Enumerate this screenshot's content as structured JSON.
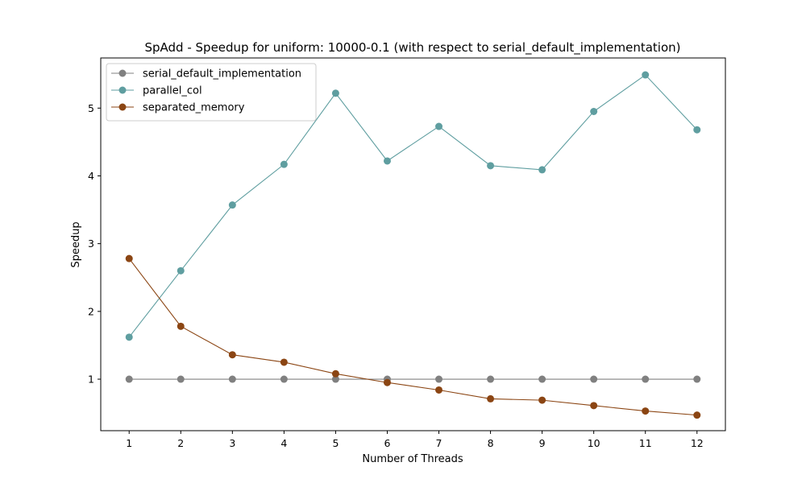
{
  "chart_data": {
    "type": "line",
    "title": "SpAdd - Speedup for uniform: 10000-0.1 (with respect to serial_default_implementation)",
    "xlabel": "Number of Threads",
    "ylabel": "Speedup",
    "x": [
      1,
      2,
      3,
      4,
      5,
      6,
      7,
      8,
      9,
      10,
      11,
      12
    ],
    "xticks": [
      "1",
      "2",
      "3",
      "4",
      "5",
      "6",
      "7",
      "8",
      "9",
      "10",
      "11",
      "12"
    ],
    "yticks": [
      "1",
      "2",
      "3",
      "4",
      "5"
    ],
    "xlim": [
      0.45,
      12.55
    ],
    "ylim": [
      0.24,
      5.74
    ],
    "grid": false,
    "legend_position": "top-left",
    "series": [
      {
        "name": "serial_default_implementation",
        "color": "#808080",
        "values": [
          1.0,
          1.0,
          1.0,
          1.0,
          1.0,
          1.0,
          1.0,
          1.0,
          1.0,
          1.0,
          1.0,
          1.0
        ]
      },
      {
        "name": "parallel_col",
        "color": "#5f9ea0",
        "values": [
          1.62,
          2.6,
          3.57,
          4.17,
          5.22,
          4.22,
          4.73,
          4.15,
          4.09,
          4.95,
          5.49,
          4.68
        ]
      },
      {
        "name": "separated_memory",
        "color": "#8b4513",
        "values": [
          2.78,
          1.78,
          1.36,
          1.25,
          1.08,
          0.95,
          0.84,
          0.71,
          0.69,
          0.61,
          0.53,
          0.47
        ]
      }
    ]
  }
}
